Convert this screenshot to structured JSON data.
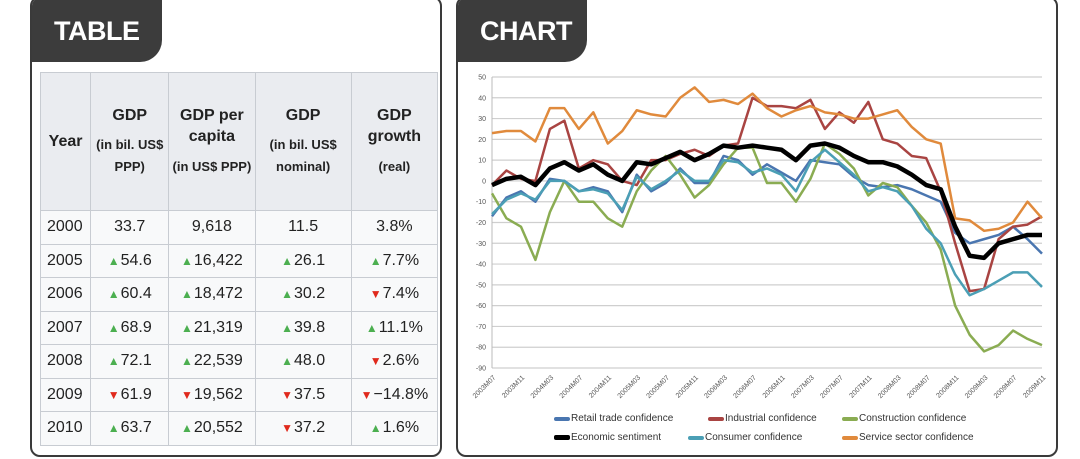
{
  "table_panel": {
    "tab": "TABLE",
    "headers": [
      {
        "main": "Year",
        "sub": ""
      },
      {
        "main": "GDP",
        "sub": "(in bil. US$ PPP)"
      },
      {
        "main": "GDP per capita",
        "sub": "(in US$ PPP)"
      },
      {
        "main": "GDP",
        "sub": "(in bil. US$ nominal)"
      },
      {
        "main": "GDP growth",
        "sub": "(real)"
      }
    ],
    "rows": [
      [
        {
          "v": "2000"
        },
        {
          "v": "33.7"
        },
        {
          "v": "9,618"
        },
        {
          "v": "11.5"
        },
        {
          "v": "3.8%"
        }
      ],
      [
        {
          "v": "2005"
        },
        {
          "v": "54.6",
          "t": "up"
        },
        {
          "v": "16,422",
          "t": "up"
        },
        {
          "v": "26.1",
          "t": "up"
        },
        {
          "v": "7.7%",
          "t": "up"
        }
      ],
      [
        {
          "v": "2006"
        },
        {
          "v": "60.4",
          "t": "up"
        },
        {
          "v": "18,472",
          "t": "up"
        },
        {
          "v": "30.2",
          "t": "up"
        },
        {
          "v": "7.4%",
          "t": "down"
        }
      ],
      [
        {
          "v": "2007"
        },
        {
          "v": "68.9",
          "t": "up"
        },
        {
          "v": "21,319",
          "t": "up"
        },
        {
          "v": "39.8",
          "t": "up"
        },
        {
          "v": "11.1%",
          "t": "up"
        }
      ],
      [
        {
          "v": "2008"
        },
        {
          "v": "72.1",
          "t": "up"
        },
        {
          "v": "22,539",
          "t": "up"
        },
        {
          "v": "48.0",
          "t": "up"
        },
        {
          "v": "2.6%",
          "t": "down"
        }
      ],
      [
        {
          "v": "2009"
        },
        {
          "v": "61.9",
          "t": "down"
        },
        {
          "v": "19,562",
          "t": "down"
        },
        {
          "v": "37.5",
          "t": "down"
        },
        {
          "v": "−14.8%",
          "t": "down"
        }
      ],
      [
        {
          "v": "2010"
        },
        {
          "v": "63.7",
          "t": "up"
        },
        {
          "v": "20,552",
          "t": "up"
        },
        {
          "v": "37.2",
          "t": "down"
        },
        {
          "v": "1.6%",
          "t": "up"
        }
      ]
    ],
    "arrows": {
      "up": "▲",
      "down": "▼"
    },
    "colors": {
      "up": "#4caf50",
      "down": "#e0291c"
    }
  },
  "chart_panel": {
    "tab": "CHART"
  },
  "chart_data": {
    "type": "line",
    "title": "",
    "xlabel": "",
    "ylabel": "",
    "ylim": [
      -90,
      50
    ],
    "yticks": [
      50,
      40,
      30,
      20,
      10,
      0,
      -10,
      -20,
      -30,
      -40,
      -50,
      -60,
      -70,
      -80,
      -90
    ],
    "grid": true,
    "legend_position": "bottom",
    "x_tick_labels": [
      "2003M07",
      "2003M11",
      "2004M03",
      "2004M07",
      "2004M11",
      "2005M03",
      "2005M07",
      "2005M11",
      "2006M03",
      "2006M07",
      "2006M11",
      "2007M03",
      "2007M07",
      "2007M11",
      "2008M03",
      "2008M07",
      "2008M11",
      "2009M03",
      "2009M07",
      "2009M11"
    ],
    "x_note": "values sampled every 2 months from 2003M07 to 2009M11",
    "series": [
      {
        "name": "Retail trade confidence",
        "color": "#4a76b0",
        "width": 2.5,
        "values": [
          -17,
          -8,
          -5,
          -10,
          1,
          0,
          -5,
          -3,
          -5,
          -15,
          3,
          -5,
          -1,
          6,
          -1,
          -1,
          12,
          10,
          3,
          8,
          4,
          0,
          10,
          9,
          8,
          2,
          -2,
          -3,
          -2,
          -4,
          -7,
          -10,
          -25,
          -30,
          -28,
          -26,
          -22,
          -28,
          -35
        ]
      },
      {
        "name": "Industrial confidence",
        "color": "#a94442",
        "width": 2.5,
        "values": [
          -2,
          5,
          1,
          0,
          25,
          29,
          6,
          10,
          8,
          0,
          -2,
          10,
          10,
          13,
          15,
          12,
          17,
          18,
          40,
          36,
          36,
          35,
          39,
          25,
          33,
          28,
          38,
          20,
          18,
          12,
          11,
          -5,
          -30,
          -53,
          -52,
          -28,
          -22,
          -21,
          -17
        ]
      },
      {
        "name": "Construction confidence",
        "color": "#8aac52",
        "width": 2.5,
        "values": [
          -6,
          -18,
          -22,
          -38,
          -15,
          0,
          -10,
          -10,
          -18,
          -22,
          -5,
          5,
          12,
          3,
          -8,
          -2,
          8,
          16,
          16,
          -1,
          -1,
          -10,
          1,
          18,
          13,
          6,
          -7,
          -1,
          -3,
          -12,
          -20,
          -33,
          -60,
          -74,
          -82,
          -79,
          -72,
          -76,
          -79
        ]
      },
      {
        "name": "Economic sentiment",
        "color": "#000000",
        "width": 4.5,
        "values": [
          -2,
          1,
          2,
          -2,
          6,
          9,
          5,
          8,
          3,
          0,
          9,
          8,
          11,
          14,
          10,
          13,
          17,
          16,
          17,
          16,
          15,
          10,
          17,
          18,
          16,
          12,
          9,
          9,
          7,
          3,
          -2,
          -4,
          -22,
          -36,
          -37,
          -30,
          -28,
          -26,
          -26
        ]
      },
      {
        "name": "Consumer confidence",
        "color": "#4b9fb5",
        "width": 2.5,
        "values": [
          -16,
          -9,
          -6,
          -9,
          0,
          0,
          -5,
          -4,
          -6,
          -14,
          2,
          -4,
          0,
          5,
          0,
          0,
          10,
          9,
          4,
          6,
          3,
          -5,
          9,
          15,
          9,
          3,
          -5,
          -3,
          -5,
          -12,
          -23,
          -30,
          -45,
          -55,
          -52,
          -48,
          -44,
          -44,
          -51
        ]
      },
      {
        "name": "Service sector confidence",
        "color": "#e08a3c",
        "width": 2.5,
        "values": [
          23,
          24,
          24,
          19,
          35,
          35,
          25,
          33,
          18,
          24,
          34,
          32,
          31,
          40,
          45,
          38,
          39,
          37,
          42,
          35,
          31,
          34,
          36,
          33,
          32,
          30,
          30,
          32,
          34,
          26,
          20,
          18,
          -18,
          -19,
          -24,
          -23,
          -20,
          -10,
          -18
        ]
      }
    ]
  }
}
